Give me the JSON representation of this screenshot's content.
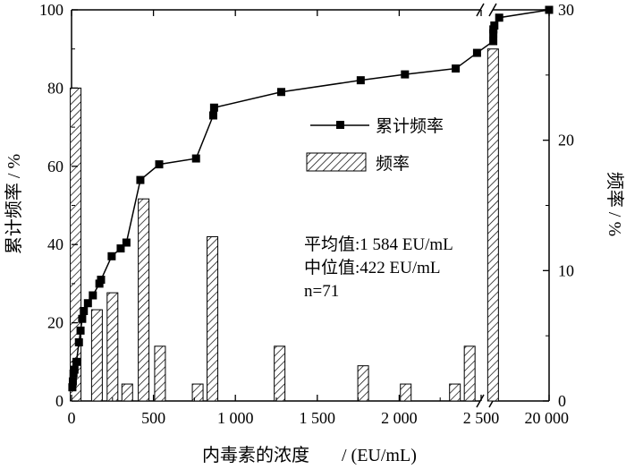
{
  "chart_data": {
    "type": "bar+line",
    "xlabel_cn": "内毒素的浓度",
    "xlabel_unit": "/ (EU/mL)",
    "ylabel_left": "累计频率 / %",
    "ylabel_right": "频率 / %",
    "ylim_left": [
      0,
      100
    ],
    "ylim_right": [
      0,
      30
    ],
    "left_ticks": [
      0,
      20,
      40,
      60,
      80,
      100
    ],
    "right_ticks": [
      0,
      10,
      20,
      30
    ],
    "x_ticks": [
      {
        "value": 0,
        "label": "0"
      },
      {
        "value": 500,
        "label": "500"
      },
      {
        "value": 1000,
        "label": "1 000"
      },
      {
        "value": 1500,
        "label": "1 500"
      },
      {
        "value": 2000,
        "label": "2 000"
      },
      {
        "value": 2500,
        "label": "2 500"
      },
      {
        "value": 20000,
        "label": "20 000"
      }
    ],
    "axis_break": {
      "after": 2500,
      "label": "//"
    },
    "legend": {
      "cumulative": "累计频率",
      "frequency": "频率",
      "position": "top-right"
    },
    "stats": {
      "mean": "平均值:1 584 EU/mL",
      "median": "中位值:422 EU/mL",
      "n": "n=71"
    },
    "series": [
      {
        "name": "频率",
        "kind": "bar",
        "axis": "right",
        "bins": [
          {
            "x": 25,
            "y": 24
          },
          {
            "x": 155,
            "y": 7
          },
          {
            "x": 250,
            "y": 8.3
          },
          {
            "x": 340,
            "y": 1.3
          },
          {
            "x": 440,
            "y": 15.5
          },
          {
            "x": 540,
            "y": 4.2
          },
          {
            "x": 770,
            "y": 1.3
          },
          {
            "x": 860,
            "y": 12.6
          },
          {
            "x": 1270,
            "y": 4.2
          },
          {
            "x": 1780,
            "y": 2.7
          },
          {
            "x": 2040,
            "y": 1.3
          },
          {
            "x": 2340,
            "y": 1.3
          },
          {
            "x": 2430,
            "y": 4.2
          },
          {
            "x": 2600,
            "y": 27
          }
        ]
      },
      {
        "name": "累计频率",
        "kind": "line",
        "axis": "left",
        "points": [
          {
            "x": 5,
            "y": 3.5
          },
          {
            "x": 8,
            "y": 5
          },
          {
            "x": 12,
            "y": 7
          },
          {
            "x": 18,
            "y": 8
          },
          {
            "x": 30,
            "y": 10
          },
          {
            "x": 45,
            "y": 15
          },
          {
            "x": 55,
            "y": 18
          },
          {
            "x": 65,
            "y": 21
          },
          {
            "x": 75,
            "y": 23
          },
          {
            "x": 100,
            "y": 25
          },
          {
            "x": 130,
            "y": 27
          },
          {
            "x": 170,
            "y": 30
          },
          {
            "x": 180,
            "y": 31
          },
          {
            "x": 245,
            "y": 37
          },
          {
            "x": 300,
            "y": 39
          },
          {
            "x": 335,
            "y": 40.5
          },
          {
            "x": 420,
            "y": 56.5
          },
          {
            "x": 535,
            "y": 60.5
          },
          {
            "x": 760,
            "y": 62
          },
          {
            "x": 865,
            "y": 73
          },
          {
            "x": 870,
            "y": 75
          },
          {
            "x": 1280,
            "y": 79
          },
          {
            "x": 1765,
            "y": 82
          },
          {
            "x": 2035,
            "y": 83.5
          },
          {
            "x": 2345,
            "y": 85
          },
          {
            "x": 2475,
            "y": 89
          },
          {
            "x": 2665,
            "y": 92
          },
          {
            "x": 2675,
            "y": 94
          },
          {
            "x": 2695,
            "y": 95
          },
          {
            "x": 3000,
            "y": 96
          },
          {
            "x": 4500,
            "y": 98
          },
          {
            "x": 20000,
            "y": 100
          }
        ]
      }
    ]
  }
}
